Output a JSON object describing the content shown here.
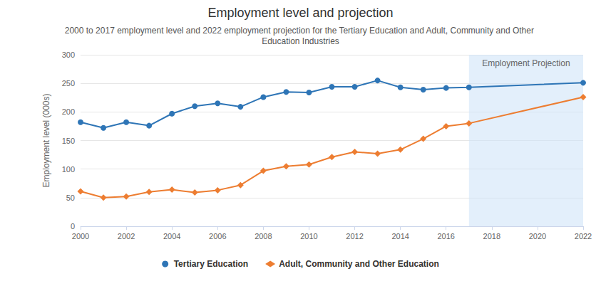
{
  "chart_data": {
    "type": "line",
    "title": "Employment level and projection",
    "subtitle": "2000 to 2017 employment level and 2022 employment projection for the Tertiary Education and Adult, Community and Other Education Industries",
    "y_label": "Employment level (000s)",
    "x": [
      2000,
      2001,
      2002,
      2003,
      2004,
      2005,
      2006,
      2007,
      2008,
      2009,
      2010,
      2011,
      2012,
      2013,
      2014,
      2015,
      2016,
      2017,
      2022
    ],
    "series": [
      {
        "name": "Tertiary Education",
        "color": "#2e75b6",
        "marker": "circle",
        "values": [
          182,
          172,
          182,
          176,
          197,
          210,
          215,
          209,
          226,
          235,
          234,
          244,
          244,
          255,
          243,
          239,
          242,
          243,
          251
        ]
      },
      {
        "name": "Adult, Community and Other Education",
        "color": "#ed7d31",
        "marker": "diamond",
        "values": [
          61,
          50,
          52,
          60,
          64,
          59,
          63,
          72,
          97,
          105,
          108,
          121,
          130,
          127,
          134,
          153,
          175,
          180,
          226
        ]
      }
    ],
    "xlim": [
      2000,
      2022
    ],
    "xticks": [
      2000,
      2002,
      2004,
      2006,
      2008,
      2010,
      2012,
      2014,
      2016,
      2018,
      2020,
      2022
    ],
    "ylim": [
      0,
      300
    ],
    "yticks": [
      0,
      50,
      100,
      150,
      200,
      250,
      300
    ],
    "grid": true,
    "legend": "bottom",
    "annotations": [
      {
        "text": "Employment Projection",
        "x": [
          2017,
          2022
        ]
      }
    ]
  }
}
